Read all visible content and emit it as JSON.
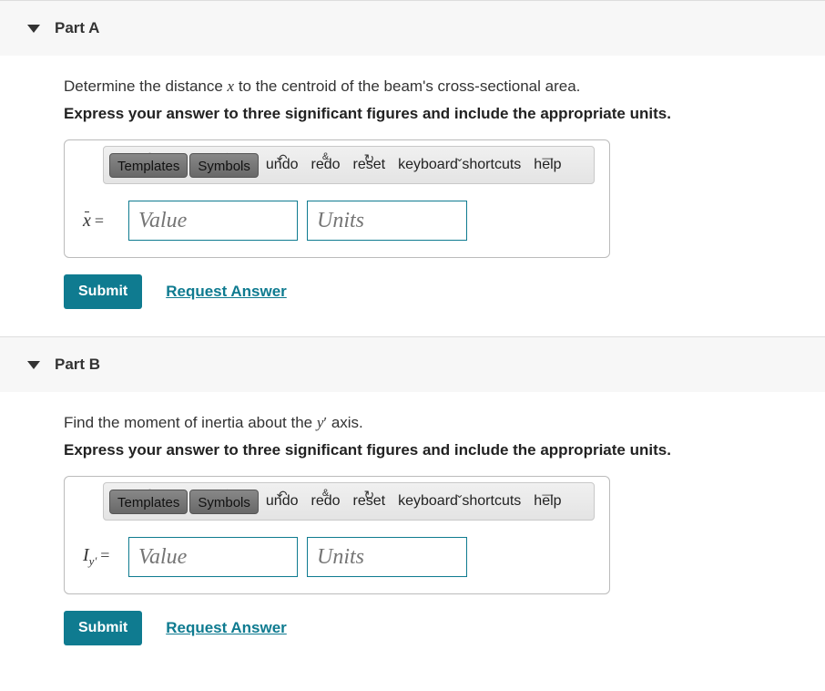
{
  "colors": {
    "accent": "#0f7b90",
    "border": "#bbbbbb",
    "toolbar_bg_top": "#f0f0f0",
    "toolbar_bg_bottom": "#e4e4e4",
    "tool_btn_bg": "#787878"
  },
  "partA": {
    "title": "Part A",
    "prompt_prefix": "Determine the distance ",
    "prompt_var_html": "x̄",
    "prompt_suffix": " to the centroid of the beam's cross-sectional area.",
    "instruction": "Express your answer to three significant figures and include the appropriate units.",
    "toolbar": {
      "templates": "Templates",
      "symbols": "Symbols",
      "undo": "undo",
      "redo": "redo",
      "reset": "reset",
      "kbd": "keyboard shortcuts",
      "help": "help"
    },
    "lhs_var": "x̄",
    "equals": "=",
    "value_placeholder": "Value",
    "units_placeholder": "Units",
    "submit": "Submit",
    "request": "Request Answer"
  },
  "partB": {
    "title": "Part B",
    "prompt_prefix": "Find the moment of inertia about the ",
    "prompt_var_html": "y′",
    "prompt_suffix": " axis.",
    "instruction": "Express your answer to three significant figures and include the appropriate units.",
    "toolbar": {
      "templates": "Templates",
      "symbols": "Symbols",
      "undo": "undo",
      "redo": "redo",
      "reset": "reset",
      "kbd": "keyboard shortcuts",
      "help": "help"
    },
    "lhs_var": "I",
    "lhs_sub": "y′",
    "equals": "=",
    "value_placeholder": "Value",
    "units_placeholder": "Units",
    "submit": "Submit",
    "request": "Request Answer"
  }
}
